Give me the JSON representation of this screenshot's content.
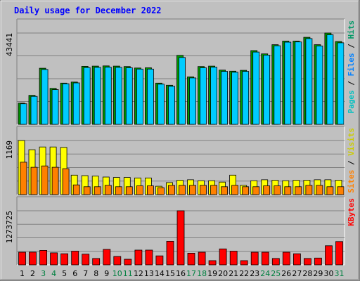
{
  "chart_data": {
    "type": "bar",
    "title": "Daily usage for December 2022",
    "categories": [
      "1",
      "2",
      "3",
      "4",
      "5",
      "6",
      "7",
      "8",
      "9",
      "10",
      "11",
      "12",
      "13",
      "14",
      "15",
      "16",
      "17",
      "18",
      "19",
      "20",
      "21",
      "22",
      "23",
      "24",
      "25",
      "26",
      "27",
      "28",
      "29",
      "30",
      "31"
    ],
    "weekend_days": [
      "3",
      "4",
      "10",
      "11",
      "17",
      "18",
      "24",
      "25",
      "31"
    ],
    "panels": [
      {
        "id": "hits",
        "max_label": "43441",
        "ylim": [
          0,
          43441
        ],
        "legend": [
          "Pages",
          "Files",
          "Hits"
        ],
        "series": [
          {
            "name": "Hits",
            "color": "#009900",
            "values": [
              10100,
              13800,
              26700,
              17100,
              19600,
              20100,
              27600,
              27700,
              27800,
              27700,
              27500,
              26800,
              26900,
              19600,
              18600,
              32800,
              22600,
              27500,
              27700,
              25800,
              25300,
              25700,
              35100,
              33500,
              37900,
              39600,
              39600,
              41400,
              37900,
              43441,
              39400
            ]
          },
          {
            "name": "Files",
            "color": "#00ccff",
            "values": [
              9800,
              13300,
              26100,
              16500,
              19300,
              19700,
              27000,
              27100,
              27200,
              27100,
              26900,
              26300,
              26300,
              19100,
              18100,
              31800,
              22100,
              26900,
              27200,
              25200,
              24800,
              25200,
              34400,
              32900,
              37400,
              39100,
              39200,
              40800,
              37300,
              42600,
              38800
            ]
          },
          {
            "name": "Pages",
            "color": "#004080",
            "values": [
              0,
              0,
              0,
              0,
              0,
              0,
              0,
              0,
              0,
              0,
              0,
              0,
              0,
              0,
              0,
              0,
              0,
              0,
              0,
              0,
              0,
              0,
              0,
              0,
              0,
              0,
              0,
              0,
              0,
              0,
              0
            ]
          }
        ]
      },
      {
        "id": "visits",
        "max_label": "1169",
        "ylim": [
          0,
          1169
        ],
        "legend": [
          "Sites",
          "Visits"
        ],
        "series": [
          {
            "name": "Visits",
            "color": "#ffff00",
            "values": [
              1169,
              970,
              1030,
              1030,
              1020,
              420,
              410,
              400,
              380,
              370,
              370,
              360,
              360,
              180,
              260,
              310,
              320,
              300,
              300,
              270,
              420,
              200,
              300,
              320,
              310,
              300,
              310,
              310,
              320,
              320,
              310
            ]
          },
          {
            "name": "Sites",
            "color": "#ff8000",
            "values": [
              700,
              590,
              620,
              590,
              560,
              210,
              170,
              170,
              200,
              170,
              170,
              190,
              190,
              150,
              200,
              200,
              200,
              200,
              200,
              170,
              200,
              170,
              170,
              190,
              190,
              170,
              170,
              200,
              200,
              170,
              170
            ]
          }
        ]
      },
      {
        "id": "kbytes",
        "max_label": "1273725",
        "ylim": [
          0,
          1273725
        ],
        "legend": [
          "KBytes"
        ],
        "series": [
          {
            "name": "KBytes",
            "color": "#ff0000",
            "values": [
              298000,
              300000,
              340000,
              283000,
              262000,
              322000,
              252000,
              150000,
              364000,
              197000,
              132000,
              347000,
              347000,
              211000,
              556000,
              1273725,
              274000,
              298000,
              100000,
              375000,
              322000,
              100000,
              298000,
              298000,
              150000,
              298000,
              262000,
              150000,
              161000,
              450000,
              550000
            ]
          }
        ]
      }
    ],
    "legend_colors": {
      "Pages": "#00c0c0",
      "Files": "#0080ff",
      "Hits": "#009966",
      "Sites": "#ff8000",
      "Visits": "#cccc00",
      "KBytes": "#ff0000",
      "separator": "#000000"
    }
  },
  "colors": {
    "plot_bg": "#c0c0c0",
    "outer_bg": "#c0c0c0",
    "title": "#0000ff",
    "weekday_label": "#000000",
    "weekend_label": "#008040"
  }
}
